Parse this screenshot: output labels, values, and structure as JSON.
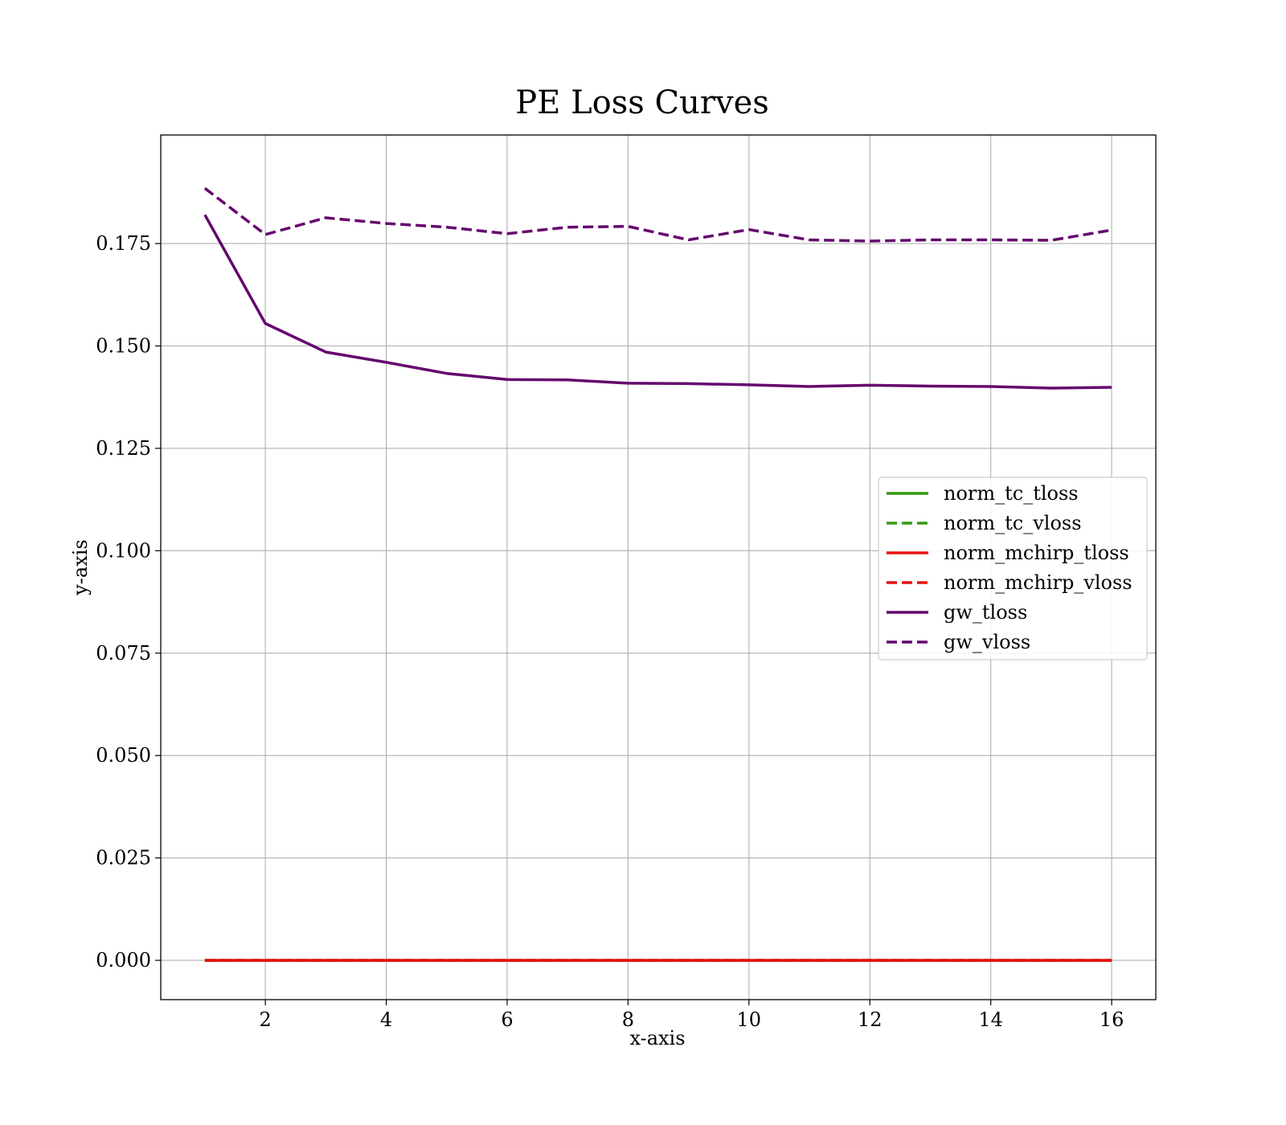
{
  "chart_data": {
    "type": "line",
    "title": "PE Loss Curves",
    "xlabel": "x-axis",
    "ylabel": "y-axis",
    "xlim": [
      0.27,
      16.73
    ],
    "ylim": [
      -0.0096,
      0.2015
    ],
    "xticks": [
      2,
      4,
      6,
      8,
      10,
      12,
      14,
      16
    ],
    "xtick_labels": [
      "2",
      "4",
      "6",
      "8",
      "10",
      "12",
      "14",
      "16"
    ],
    "yticks": [
      0.0,
      0.025,
      0.05,
      0.075,
      0.1,
      0.125,
      0.15,
      0.175
    ],
    "ytick_labels": [
      "0.000",
      "0.025",
      "0.050",
      "0.075",
      "0.100",
      "0.125",
      "0.150",
      "0.175"
    ],
    "grid": true,
    "legend_position": "center-right",
    "x": [
      1,
      2,
      3,
      4,
      5,
      6,
      7,
      8,
      9,
      10,
      11,
      12,
      13,
      14,
      15,
      16
    ],
    "series": [
      {
        "name": "norm_tc_tloss",
        "color": "#339a12",
        "dashed": false,
        "values": [
          0.0,
          0.0,
          0.0,
          0.0,
          0.0,
          0.0,
          0.0,
          0.0,
          0.0,
          0.0,
          0.0,
          0.0,
          0.0,
          0.0,
          0.0,
          0.0
        ]
      },
      {
        "name": "norm_tc_vloss",
        "color": "#339a12",
        "dashed": true,
        "values": [
          0.0,
          0.0,
          0.0,
          0.0,
          0.0,
          0.0,
          0.0,
          0.0,
          0.0,
          0.0,
          0.0,
          0.0,
          0.0,
          0.0,
          0.0,
          0.0
        ]
      },
      {
        "name": "norm_mchirp_tloss",
        "color": "#e8110f",
        "dashed": false,
        "values": [
          0.0,
          0.0,
          0.0,
          0.0,
          0.0,
          0.0,
          0.0,
          0.0,
          0.0,
          0.0,
          0.0,
          0.0,
          0.0,
          0.0,
          0.0,
          0.0
        ]
      },
      {
        "name": "norm_mchirp_vloss",
        "color": "#e8110f",
        "dashed": true,
        "values": [
          0.0,
          0.0,
          0.0,
          0.0,
          0.0,
          0.0,
          0.0,
          0.0,
          0.0,
          0.0,
          0.0,
          0.0,
          0.0,
          0.0,
          0.0,
          0.0
        ]
      },
      {
        "name": "gw_tloss",
        "color": "#65076f",
        "dashed": false,
        "values": [
          0.182,
          0.1555,
          0.1485,
          0.146,
          0.1433,
          0.1418,
          0.1417,
          0.1409,
          0.1408,
          0.1405,
          0.1401,
          0.1404,
          0.1402,
          0.1401,
          0.1397,
          0.1399
        ]
      },
      {
        "name": "gw_vloss",
        "color": "#65076f",
        "dashed": true,
        "values": [
          0.1885,
          0.1772,
          0.1813,
          0.1799,
          0.179,
          0.1774,
          0.179,
          0.1792,
          0.1759,
          0.1784,
          0.1759,
          0.1756,
          0.1759,
          0.1759,
          0.1758,
          0.1783
        ]
      }
    ]
  }
}
